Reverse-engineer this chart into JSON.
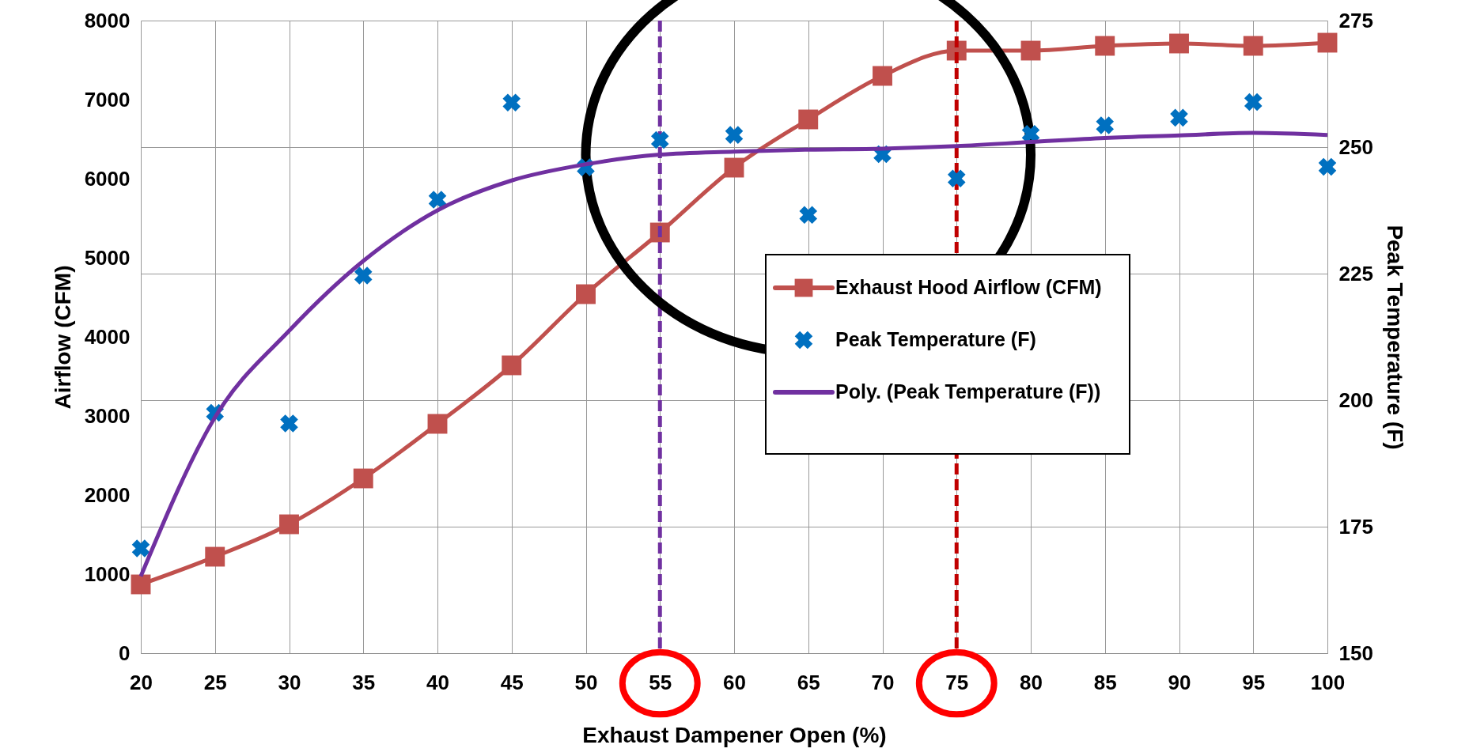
{
  "chart_data": {
    "type": "line",
    "xlabel": "Exhaust Dampener Open (%)",
    "ylabel": "Airflow (CFM)",
    "y2label": "Peak Temperature (F)",
    "x": [
      20,
      25,
      30,
      35,
      40,
      45,
      50,
      55,
      60,
      65,
      70,
      75,
      80,
      85,
      90,
      95,
      100
    ],
    "series": [
      {
        "name": "Exhaust Hood Airflow (CFM)",
        "marker": "square",
        "color": "#c0504d",
        "values": [
          870,
          1220,
          1630,
          2210,
          2900,
          3640,
          4540,
          5320,
          6140,
          6750,
          7300,
          7620,
          7620,
          7680,
          7710,
          7680,
          7720
        ]
      },
      {
        "name": "Peak Temperature (F)",
        "type": "scatter",
        "marker": "cross",
        "axis": "y2",
        "color": "#0070c0",
        "values": [
          170.7,
          197.5,
          195.4,
          224.6,
          239.6,
          258.8,
          246.0,
          251.4,
          252.4,
          236.6,
          248.6,
          243.8,
          252.6,
          254.3,
          255.8,
          258.9,
          246.1
        ]
      },
      {
        "name": "Poly. (Peak Temperature (F))",
        "type": "line",
        "marker": "none",
        "axis": "y2",
        "color": "#7030a0",
        "values": [
          165.2,
          196.6,
          213.7,
          227.5,
          237.5,
          243.4,
          246.6,
          248.5,
          249.1,
          249.5,
          249.7,
          250.2,
          251.0,
          251.8,
          252.3,
          252.8,
          252.4
        ]
      }
    ],
    "xlim": [
      20,
      100
    ],
    "xticks": [
      20,
      25,
      30,
      35,
      40,
      45,
      50,
      55,
      60,
      65,
      70,
      75,
      80,
      85,
      90,
      95,
      100
    ],
    "ylim": [
      0,
      8000
    ],
    "yticks": [
      0,
      1000,
      2000,
      3000,
      4000,
      5000,
      6000,
      7000,
      8000
    ],
    "y2lim": [
      150,
      275
    ],
    "y2ticks": [
      150,
      175,
      200,
      225,
      250,
      275
    ],
    "ref_lines": [
      {
        "axis": "x",
        "value": 55,
        "color": "#7030a0",
        "line_style": "dashed"
      },
      {
        "axis": "x",
        "value": 75,
        "color": "#c00000",
        "line_style": "dashed"
      }
    ],
    "grid": true,
    "legend": "bottom"
  }
}
